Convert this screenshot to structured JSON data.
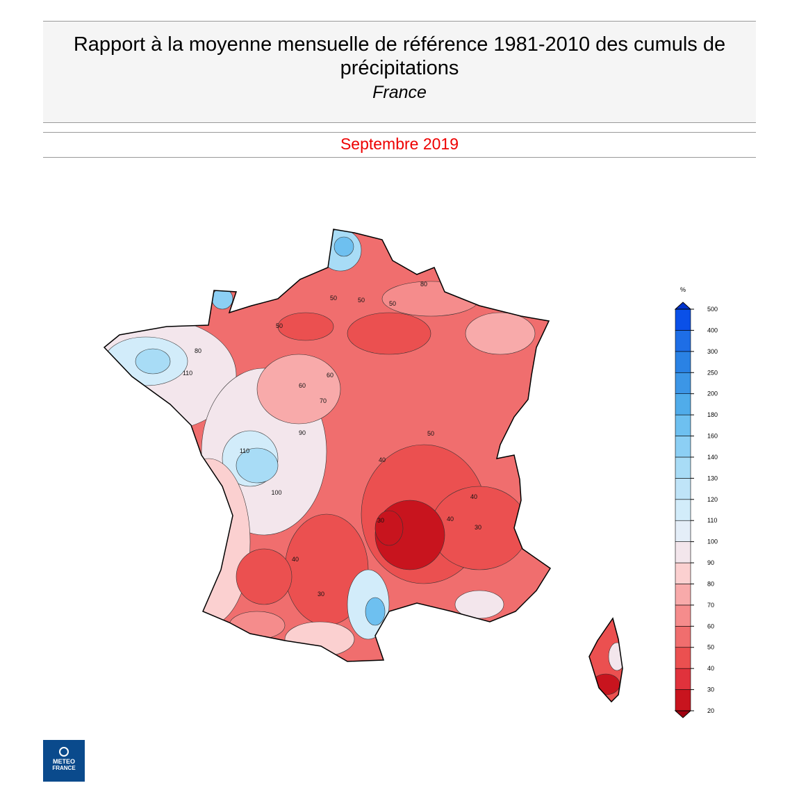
{
  "header": {
    "title": "Rapport à la moyenne mensuelle de référence 1981-2010 des cumuls de précipitations",
    "subtitle": "France",
    "period": "Septembre 2019"
  },
  "legend": {
    "unit": "%",
    "ticks": [
      20,
      30,
      40,
      50,
      60,
      70,
      80,
      90,
      100,
      110,
      120,
      130,
      140,
      160,
      180,
      200,
      250,
      300,
      400,
      500
    ],
    "colors": [
      "#c8141e",
      "#e0323c",
      "#eb5050",
      "#f06e6e",
      "#f58c8c",
      "#f8aaaa",
      "#fbd0d0",
      "#f3e6ec",
      "#e4eef8",
      "#d2ecfa",
      "#bfe4f8",
      "#a8dcf6",
      "#8ccff4",
      "#6ec0f0",
      "#50acea",
      "#3c96e6",
      "#2a82e4",
      "#1e6ee6",
      "#0a50e8"
    ],
    "under_color": "#a00010",
    "over_color": "#0033cc"
  },
  "map": {
    "contour_labels": [
      50,
      50,
      50,
      50,
      60,
      60,
      80,
      80,
      110,
      110,
      90,
      100,
      70,
      40,
      40,
      30,
      30,
      40,
      40,
      30,
      50
    ]
  },
  "logo": {
    "line1": "METEO",
    "line2": "FRANCE"
  }
}
